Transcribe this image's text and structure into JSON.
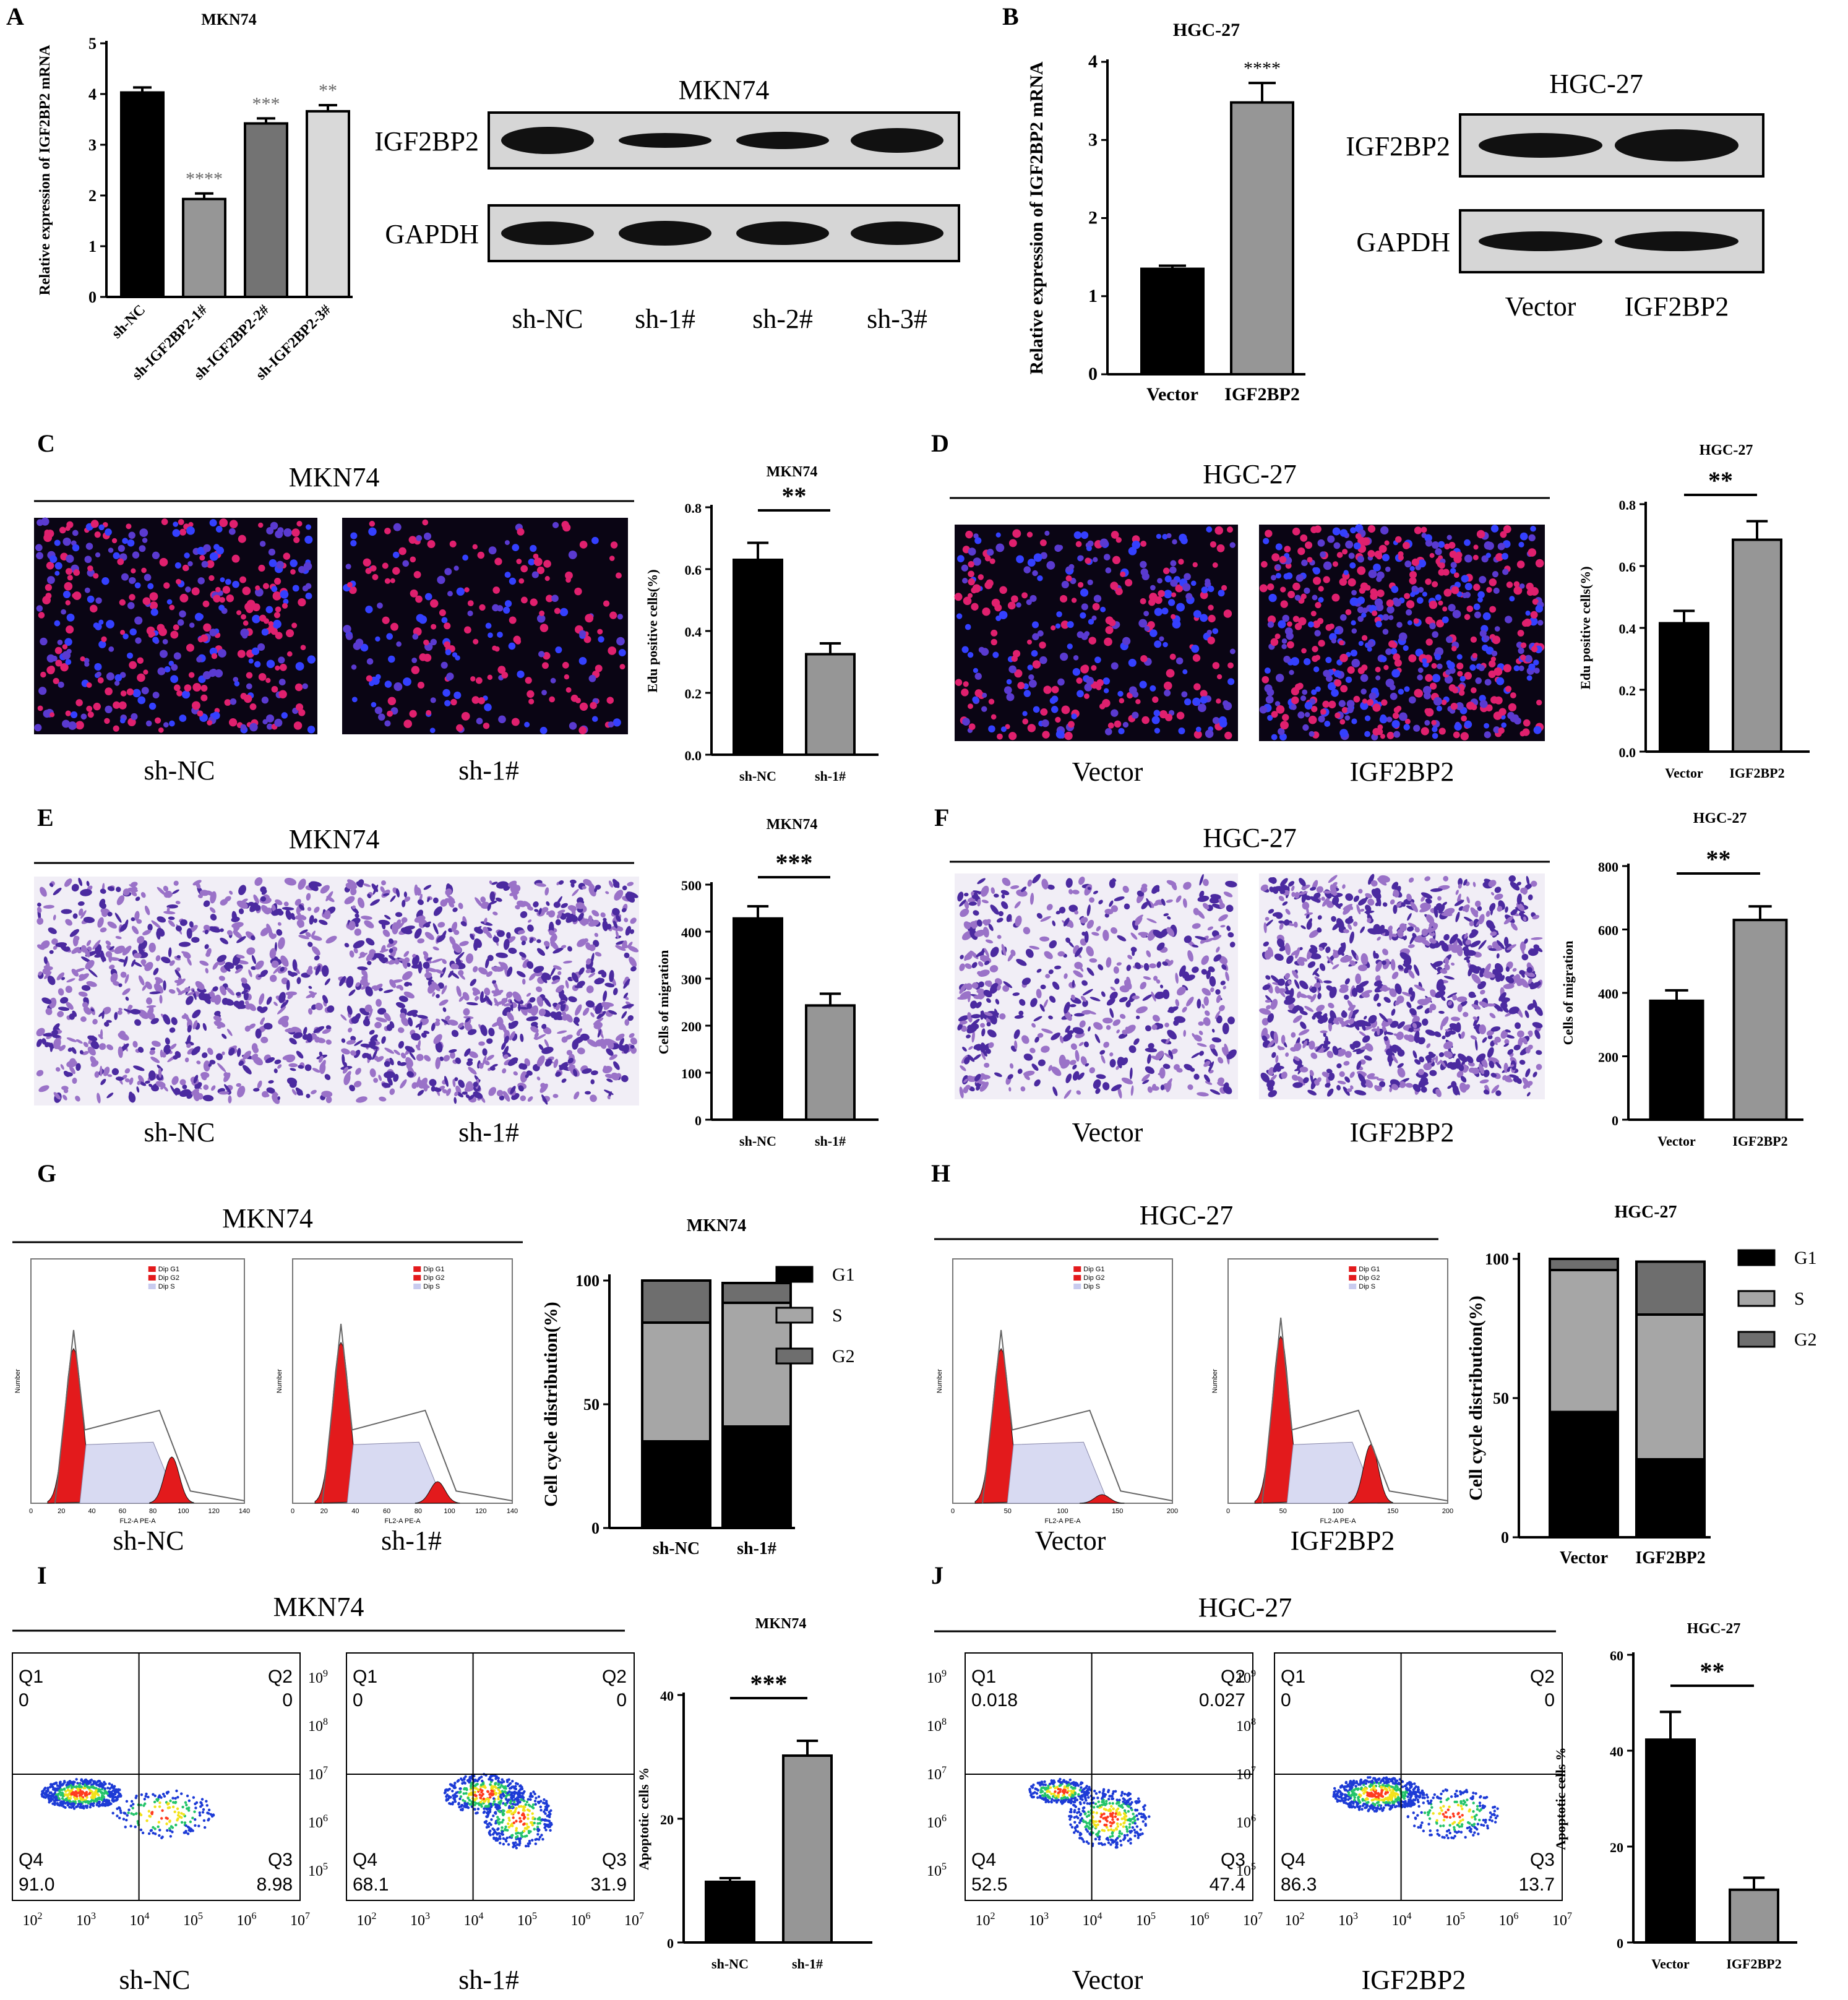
{
  "panels": {
    "A": {
      "letter": "A",
      "chart_data": {
        "type": "bar",
        "title": "MKN74",
        "xlabel": "",
        "ylabel": "Relative expression of IGF2BP2 mRNA",
        "categories": [
          "sh-NC",
          "sh-IGF2BP2-1#",
          "sh-IGF2BP2-2#",
          "sh-IGF2BP2-3#"
        ],
        "values": [
          4.03,
          1.93,
          3.42,
          3.66
        ],
        "errors": [
          0.1,
          0.11,
          0.1,
          0.12
        ],
        "annotations": [
          "",
          "****",
          "***",
          "**"
        ],
        "ylim": [
          0,
          5
        ],
        "yticks": [
          0,
          1,
          2,
          3,
          4,
          5
        ],
        "colors": [
          "#000000",
          "#969696",
          "#737373",
          "#d9d9d9"
        ]
      },
      "blot": {
        "title": "MKN74",
        "rows": [
          "IGF2BP2",
          "GAPDH"
        ],
        "lanes": [
          "sh-NC",
          "sh-1#",
          "sh-2#",
          "sh-3#"
        ]
      }
    },
    "B": {
      "letter": "B",
      "chart_data": {
        "type": "bar",
        "title": "HGC-27",
        "xlabel": "",
        "ylabel": "Relative expression of IGF2BP2 mRNA",
        "categories": [
          "Vector",
          "IGF2BP2"
        ],
        "values": [
          1.35,
          3.48
        ],
        "errors": [
          0.04,
          0.25
        ],
        "annotations": [
          "",
          "****"
        ],
        "ylim": [
          0,
          4
        ],
        "yticks": [
          0,
          1,
          2,
          3,
          4
        ],
        "colors": [
          "#000000",
          "#969696"
        ]
      },
      "blot": {
        "title": "HGC-27",
        "rows": [
          "IGF2BP2",
          "GAPDH"
        ],
        "lanes": [
          "Vector",
          "IGF2BP2"
        ]
      }
    },
    "C": {
      "letter": "C",
      "group_title": "MKN74",
      "captions": [
        "sh-NC",
        "sh-1#"
      ],
      "chart_data": {
        "type": "bar",
        "title": "MKN74",
        "xlabel": "",
        "ylabel": "Edu positive cells(%)",
        "categories": [
          "sh-NC",
          "sh-1#"
        ],
        "values": [
          0.63,
          0.325
        ],
        "errors": [
          0.055,
          0.035
        ],
        "significance": "**",
        "ylim": [
          0,
          0.8
        ],
        "yticks": [
          0.0,
          0.2,
          0.4,
          0.6,
          0.8
        ],
        "colors": [
          "#000000",
          "#969696"
        ]
      }
    },
    "D": {
      "letter": "D",
      "group_title": "HGC-27",
      "captions": [
        "Vector",
        "IGF2BP2"
      ],
      "chart_data": {
        "type": "bar",
        "title": "HGC-27",
        "xlabel": "",
        "ylabel": "Edu positive cells(%)",
        "categories": [
          "Vector",
          "IGF2BP2"
        ],
        "values": [
          0.415,
          0.685
        ],
        "errors": [
          0.04,
          0.06
        ],
        "significance": "**",
        "ylim": [
          0,
          0.8
        ],
        "yticks": [
          0.0,
          0.2,
          0.4,
          0.6,
          0.8
        ],
        "colors": [
          "#000000",
          "#969696"
        ]
      }
    },
    "E": {
      "letter": "E",
      "group_title": "MKN74",
      "captions": [
        "sh-NC",
        "sh-1#"
      ],
      "chart_data": {
        "type": "bar",
        "title": "MKN74",
        "xlabel": "",
        "ylabel": "Cells of migration",
        "categories": [
          "sh-NC",
          "sh-1#"
        ],
        "values": [
          428,
          243
        ],
        "errors": [
          26,
          25
        ],
        "significance": "***",
        "ylim": [
          0,
          500
        ],
        "yticks": [
          0,
          100,
          200,
          300,
          400,
          500
        ],
        "colors": [
          "#000000",
          "#969696"
        ]
      }
    },
    "F": {
      "letter": "F",
      "group_title": "HGC-27",
      "captions": [
        "Vector",
        "IGF2BP2"
      ],
      "chart_data": {
        "type": "bar",
        "title": "HGC-27",
        "xlabel": "",
        "ylabel": "Cells of migration",
        "categories": [
          "Vector",
          "IGF2BP2"
        ],
        "values": [
          375,
          630
        ],
        "errors": [
          33,
          43
        ],
        "significance": "**",
        "ylim": [
          0,
          800
        ],
        "yticks": [
          0,
          200,
          400,
          600,
          800
        ],
        "colors": [
          "#000000",
          "#969696"
        ]
      }
    },
    "G": {
      "letter": "G",
      "group_title": "MKN74",
      "captions": [
        "sh-NC",
        "sh-1#"
      ],
      "histo_legend": [
        "Dip G1",
        "Dip G2",
        "Dip S"
      ],
      "histo_axis": "FL2-A PE-A",
      "histo_ylabel": "Number",
      "histo_xticks": [
        "0",
        "20",
        "40",
        "60",
        "80",
        "100",
        "120",
        "140"
      ],
      "chart_data": {
        "type": "bar",
        "stacked": true,
        "title": "MKN74",
        "xlabel": "",
        "ylabel": "Cell cycle distribution(%)",
        "categories": [
          "sh-NC",
          "sh-1#"
        ],
        "series": [
          {
            "name": "G1",
            "values": [
              35,
              41
            ],
            "color": "#000000"
          },
          {
            "name": "S",
            "values": [
              48,
              50
            ],
            "color": "#a6a6a6"
          },
          {
            "name": "G2",
            "values": [
              17,
              8
            ],
            "color": "#6e6e6e"
          }
        ],
        "ylim": [
          0,
          100
        ],
        "yticks": [
          0,
          50,
          100
        ]
      }
    },
    "H": {
      "letter": "H",
      "group_title": "HGC-27",
      "captions": [
        "Vector",
        "IGF2BP2"
      ],
      "histo_legend": [
        "Dip G1",
        "Dip G2",
        "Dip S"
      ],
      "histo_axis": "FL2-A PE-A",
      "histo_ylabel": "Number",
      "histo_xticks": [
        "0",
        "50",
        "100",
        "150",
        "200"
      ],
      "chart_data": {
        "type": "bar",
        "stacked": true,
        "title": "HGC-27",
        "xlabel": "",
        "ylabel": "Cell cycle distribution(%)",
        "categories": [
          "Vector",
          "IGF2BP2"
        ],
        "series": [
          {
            "name": "G1",
            "values": [
              45,
              28
            ],
            "color": "#000000"
          },
          {
            "name": "S",
            "values": [
              51,
              52
            ],
            "color": "#a6a6a6"
          },
          {
            "name": "G2",
            "values": [
              4,
              19
            ],
            "color": "#6e6e6e"
          }
        ],
        "ylim": [
          0,
          100
        ],
        "yticks": [
          0,
          50,
          100
        ]
      }
    },
    "I": {
      "letter": "I",
      "group_title": "MKN74",
      "captions": [
        "sh-NC",
        "sh-1#"
      ],
      "quadrants": [
        {
          "Q1": "0",
          "Q2": "0",
          "Q3": "8.98",
          "Q4": "91.0"
        },
        {
          "Q1": "0",
          "Q2": "0",
          "Q3": "31.9",
          "Q4": "68.1"
        }
      ],
      "chart_data": {
        "type": "bar",
        "title": "MKN74",
        "xlabel": "",
        "ylabel": "Apoptotic cells %",
        "categories": [
          "sh-NC",
          "sh-1#"
        ],
        "values": [
          9.8,
          30.2
        ],
        "errors": [
          0.6,
          2.4
        ],
        "significance": "***",
        "ylim": [
          0,
          40
        ],
        "yticks": [
          0,
          20,
          40
        ],
        "colors": [
          "#000000",
          "#969696"
        ]
      }
    },
    "J": {
      "letter": "J",
      "group_title": "HGC-27",
      "captions": [
        "Vector",
        "IGF2BP2"
      ],
      "quadrants": [
        {
          "Q1": "0.018",
          "Q2": "0.027",
          "Q3": "47.4",
          "Q4": "52.5"
        },
        {
          "Q1": "0",
          "Q2": "0",
          "Q3": "13.7",
          "Q4": "86.3"
        }
      ],
      "chart_data": {
        "type": "bar",
        "title": "HGC-27",
        "xlabel": "",
        "ylabel": "Apoptotic cells %",
        "categories": [
          "Vector",
          "IGF2BP2"
        ],
        "values": [
          42.3,
          11
        ],
        "errors": [
          5.8,
          2.5
        ],
        "significance": "**",
        "ylim": [
          0,
          60
        ],
        "yticks": [
          0,
          20,
          40,
          60
        ],
        "colors": [
          "#000000",
          "#969696"
        ]
      }
    }
  }
}
